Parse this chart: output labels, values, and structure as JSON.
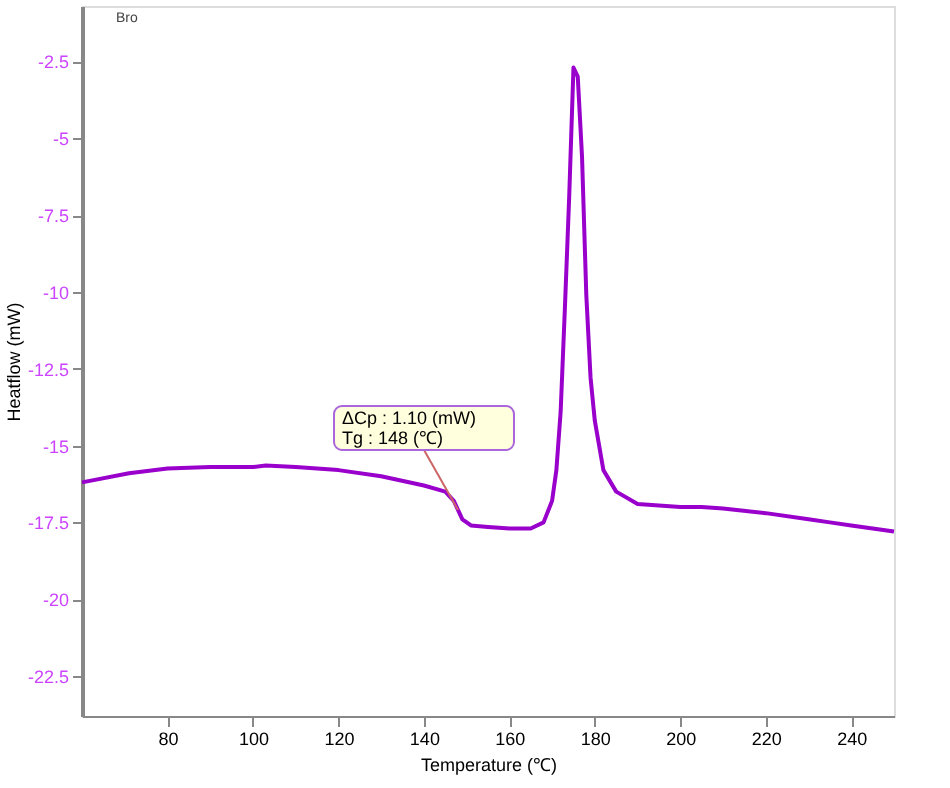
{
  "chart_data": {
    "type": "line",
    "xlabel": "Temperature (℃)",
    "ylabel": "Heatflow (mW)",
    "x": [
      60,
      71,
      80,
      90,
      100,
      103,
      110,
      120,
      130,
      140,
      145,
      147,
      148,
      149,
      151,
      155,
      160,
      165,
      168,
      170,
      171,
      172,
      173,
      174,
      175,
      176,
      177,
      178,
      179,
      180,
      182,
      185,
      190,
      200,
      205,
      210,
      220,
      230,
      235,
      240,
      250
    ],
    "series": [
      {
        "color": "#9900cc",
        "values": [
          -16.2,
          -15.9,
          -15.75,
          -15.7,
          -15.7,
          -15.65,
          -15.7,
          -15.8,
          -16.0,
          -16.3,
          -16.5,
          -16.8,
          -17.1,
          -17.4,
          -17.6,
          -17.65,
          -17.7,
          -17.7,
          -17.5,
          -16.8,
          -15.8,
          -13.9,
          -10.5,
          -6.9,
          -2.7,
          -3.0,
          -5.6,
          -10.1,
          -12.8,
          -14.2,
          -15.8,
          -16.5,
          -16.9,
          -17.0,
          -17.0,
          -17.05,
          -17.2,
          -17.4,
          -17.5,
          -17.6,
          -17.8
        ]
      }
    ],
    "xlim": [
      60,
      250
    ],
    "ylim": [
      -23.8,
      -0.7
    ],
    "xticks": [
      80,
      100,
      120,
      140,
      160,
      180,
      200,
      220,
      240
    ],
    "yticks": [
      -2.5,
      -5,
      -7.5,
      -10,
      -12.5,
      -15,
      -17.5,
      -20,
      -22.5
    ],
    "annotations": [
      "Bro",
      {
        "text": "ΔCp :  1.10 (mW)\nTg :  148 (℃)",
        "x": 148,
        "y": -17.1
      }
    ],
    "grid": false,
    "line_style": "solid",
    "marker": "none"
  }
}
